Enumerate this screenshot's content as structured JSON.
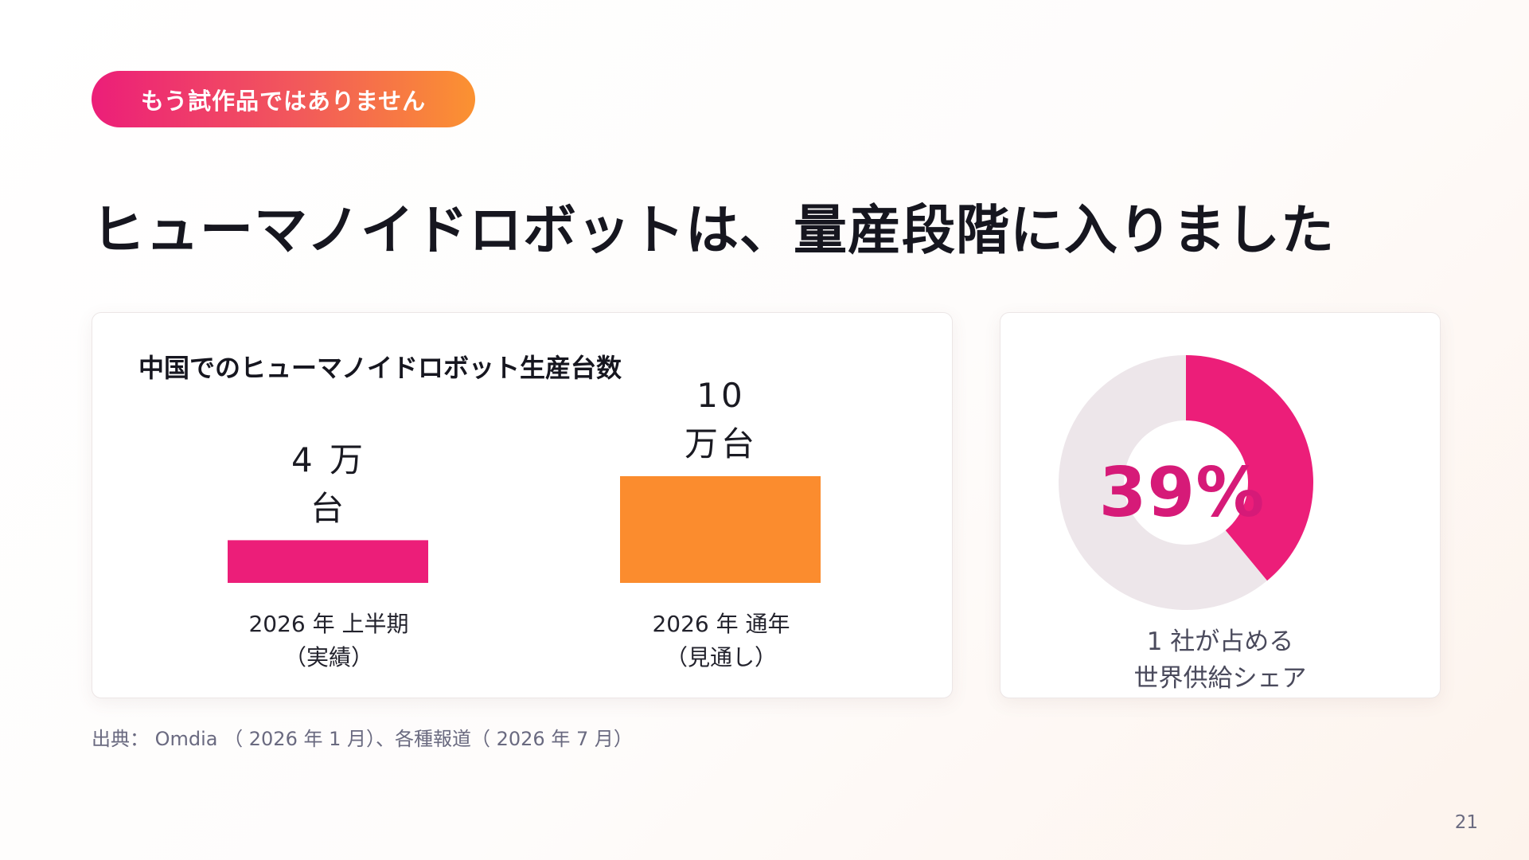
{
  "badge": "もう試作品ではありません",
  "headline": "ヒューマノイドロボットは、量産段階に入りました",
  "chart_data": [
    {
      "type": "bar",
      "title": "中国でのヒューマノイドロボット生産台数",
      "categories": [
        "2026 年 上半期",
        "2026 年 通年"
      ],
      "category_notes": [
        "（実績）",
        "（見通し）"
      ],
      "values": [
        4,
        10
      ],
      "unit": "万台",
      "data_labels": [
        [
          "4 万",
          "台"
        ],
        [
          "10",
          "万台"
        ]
      ],
      "colors": [
        "#ec1e79",
        "#fb8c2e"
      ]
    },
    {
      "type": "pie",
      "values": [
        39,
        61
      ],
      "center_label": "39%",
      "label_lines": [
        "1 社が占める",
        "世界供給シェア"
      ],
      "colors": [
        "#ec1e79",
        "#ede6ea"
      ]
    }
  ],
  "source": "出典： Omdia （ 2026 年 1 月）、各種報道（ 2026 年 7 月）",
  "page_number": "21"
}
